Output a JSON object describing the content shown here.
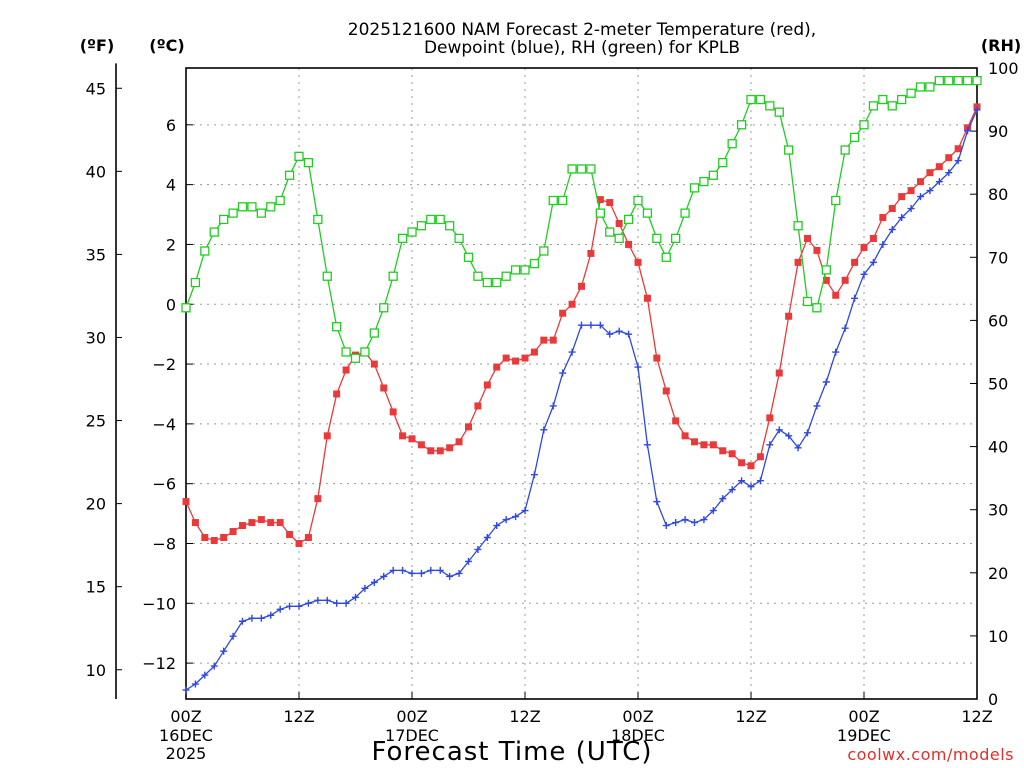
{
  "chart_data": {
    "type": "line",
    "title_line1": "2025121600 NAM Forecast 2-meter Temperature (red),",
    "title_line2": "Dewpoint (blue), RH (green) for KPLB",
    "unit_f": "(ºF)",
    "unit_c": "(ºC)",
    "unit_rh": "(RH)",
    "xlabel": "Forecast Time (UTC)",
    "credit": "coolwx.com/models",
    "x_range_hours": [
      0,
      84
    ],
    "ylim_c": [
      -13.2,
      7.9
    ],
    "ylim_rh": [
      0,
      100
    ],
    "x_ticks": [
      {
        "hour": 0,
        "l1": "00Z",
        "l2": "16DEC",
        "l3": "2025"
      },
      {
        "hour": 12,
        "l1": "12Z",
        "l2": "",
        "l3": ""
      },
      {
        "hour": 24,
        "l1": "00Z",
        "l2": "17DEC",
        "l3": ""
      },
      {
        "hour": 36,
        "l1": "12Z",
        "l2": "",
        "l3": ""
      },
      {
        "hour": 48,
        "l1": "00Z",
        "l2": "18DEC",
        "l3": ""
      },
      {
        "hour": 60,
        "l1": "12Z",
        "l2": "",
        "l3": ""
      },
      {
        "hour": 72,
        "l1": "00Z",
        "l2": "19DEC",
        "l3": ""
      },
      {
        "hour": 84,
        "l1": "12Z",
        "l2": "",
        "l3": ""
      }
    ],
    "c_ticks": [
      {
        "v": 6,
        "label": "6"
      },
      {
        "v": 4,
        "label": "4"
      },
      {
        "v": 2,
        "label": "2"
      },
      {
        "v": 0,
        "label": "0"
      },
      {
        "v": -2,
        "label": "−2"
      },
      {
        "v": -4,
        "label": "−4"
      },
      {
        "v": -6,
        "label": "−6"
      },
      {
        "v": -8,
        "label": "−8"
      },
      {
        "v": -10,
        "label": "−10"
      },
      {
        "v": -12,
        "label": "−12"
      }
    ],
    "f_ticks": [
      {
        "v": 45,
        "label": "45"
      },
      {
        "v": 40,
        "label": "40"
      },
      {
        "v": 35,
        "label": "35"
      },
      {
        "v": 30,
        "label": "30"
      },
      {
        "v": 25,
        "label": "25"
      },
      {
        "v": 20,
        "label": "20"
      },
      {
        "v": 15,
        "label": "15"
      },
      {
        "v": 10,
        "label": "10"
      }
    ],
    "rh_ticks": [
      {
        "v": 100,
        "label": "100"
      },
      {
        "v": 90,
        "label": "90"
      },
      {
        "v": 80,
        "label": "80"
      },
      {
        "v": 70,
        "label": "70"
      },
      {
        "v": 60,
        "label": "60"
      },
      {
        "v": 50,
        "label": "50"
      },
      {
        "v": 40,
        "label": "40"
      },
      {
        "v": 30,
        "label": "30"
      },
      {
        "v": 20,
        "label": "20"
      },
      {
        "v": 10,
        "label": "10"
      },
      {
        "v": 0,
        "label": "0"
      }
    ],
    "series": [
      {
        "key": "temperature",
        "color": "#e83a3a",
        "axis": "c",
        "marker": "filled-square",
        "values": [
          -6.6,
          -7.3,
          -7.8,
          -7.9,
          -7.8,
          -7.6,
          -7.4,
          -7.3,
          -7.2,
          -7.3,
          -7.3,
          -7.7,
          -8.0,
          -7.8,
          -6.5,
          -4.4,
          -3.0,
          -2.2,
          -1.7,
          -1.6,
          -2.0,
          -2.8,
          -3.6,
          -4.4,
          -4.5,
          -4.7,
          -4.9,
          -4.9,
          -4.8,
          -4.6,
          -4.1,
          -3.4,
          -2.7,
          -2.1,
          -1.8,
          -1.9,
          -1.8,
          -1.6,
          -1.2,
          -1.2,
          -0.3,
          0.0,
          0.6,
          1.7,
          3.5,
          3.4,
          2.7,
          2.0,
          1.4,
          0.2,
          -1.8,
          -2.9,
          -3.9,
          -4.4,
          -4.6,
          -4.7,
          -4.7,
          -4.9,
          -5.0,
          -5.3,
          -5.4,
          -5.1,
          -3.8,
          -2.3,
          -0.4,
          1.4,
          2.2,
          1.8,
          0.8,
          0.3,
          0.8,
          1.4,
          1.9,
          2.2,
          2.9,
          3.2,
          3.6,
          3.8,
          4.1,
          4.4,
          4.6,
          4.9,
          5.2,
          5.9,
          6.6
        ]
      },
      {
        "key": "dewpoint",
        "color": "#2f48de",
        "axis": "c",
        "marker": "plus",
        "values": [
          -12.9,
          -12.7,
          -12.4,
          -12.1,
          -11.6,
          -11.1,
          -10.6,
          -10.5,
          -10.5,
          -10.4,
          -10.2,
          -10.1,
          -10.1,
          -10.0,
          -9.9,
          -9.9,
          -10.0,
          -10.0,
          -9.8,
          -9.5,
          -9.3,
          -9.1,
          -8.9,
          -8.9,
          -9.0,
          -9.0,
          -8.9,
          -8.9,
          -9.1,
          -9.0,
          -8.6,
          -8.2,
          -7.8,
          -7.4,
          -7.2,
          -7.1,
          -6.9,
          -5.7,
          -4.2,
          -3.4,
          -2.3,
          -1.6,
          -0.7,
          -0.7,
          -0.7,
          -1.0,
          -0.9,
          -1.0,
          -2.1,
          -4.7,
          -6.6,
          -7.4,
          -7.3,
          -7.2,
          -7.3,
          -7.2,
          -6.9,
          -6.5,
          -6.2,
          -5.9,
          -6.1,
          -5.9,
          -4.7,
          -4.2,
          -4.4,
          -4.8,
          -4.3,
          -3.4,
          -2.6,
          -1.6,
          -0.8,
          0.2,
          1.0,
          1.4,
          2.0,
          2.5,
          2.9,
          3.2,
          3.6,
          3.8,
          4.1,
          4.4,
          4.8,
          5.8,
          6.5
        ]
      },
      {
        "key": "rh",
        "color": "#22cc22",
        "axis": "rh",
        "marker": "open-square",
        "values": [
          62,
          66,
          71,
          74,
          76,
          77,
          78,
          78,
          77,
          78,
          79,
          83,
          86,
          85,
          76,
          67,
          59,
          55,
          54,
          55,
          58,
          62,
          67,
          73,
          74,
          75,
          76,
          76,
          75,
          73,
          70,
          67,
          66,
          66,
          67,
          68,
          68,
          69,
          71,
          79,
          79,
          84,
          84,
          84,
          77,
          74,
          73,
          76,
          79,
          77,
          73,
          70,
          73,
          77,
          81,
          82,
          83,
          85,
          88,
          91,
          95,
          95,
          94,
          93,
          87,
          75,
          63,
          62,
          68,
          79,
          87,
          89,
          91,
          94,
          95,
          94,
          95,
          96,
          97,
          97,
          98,
          98,
          98,
          98,
          98
        ]
      }
    ]
  }
}
